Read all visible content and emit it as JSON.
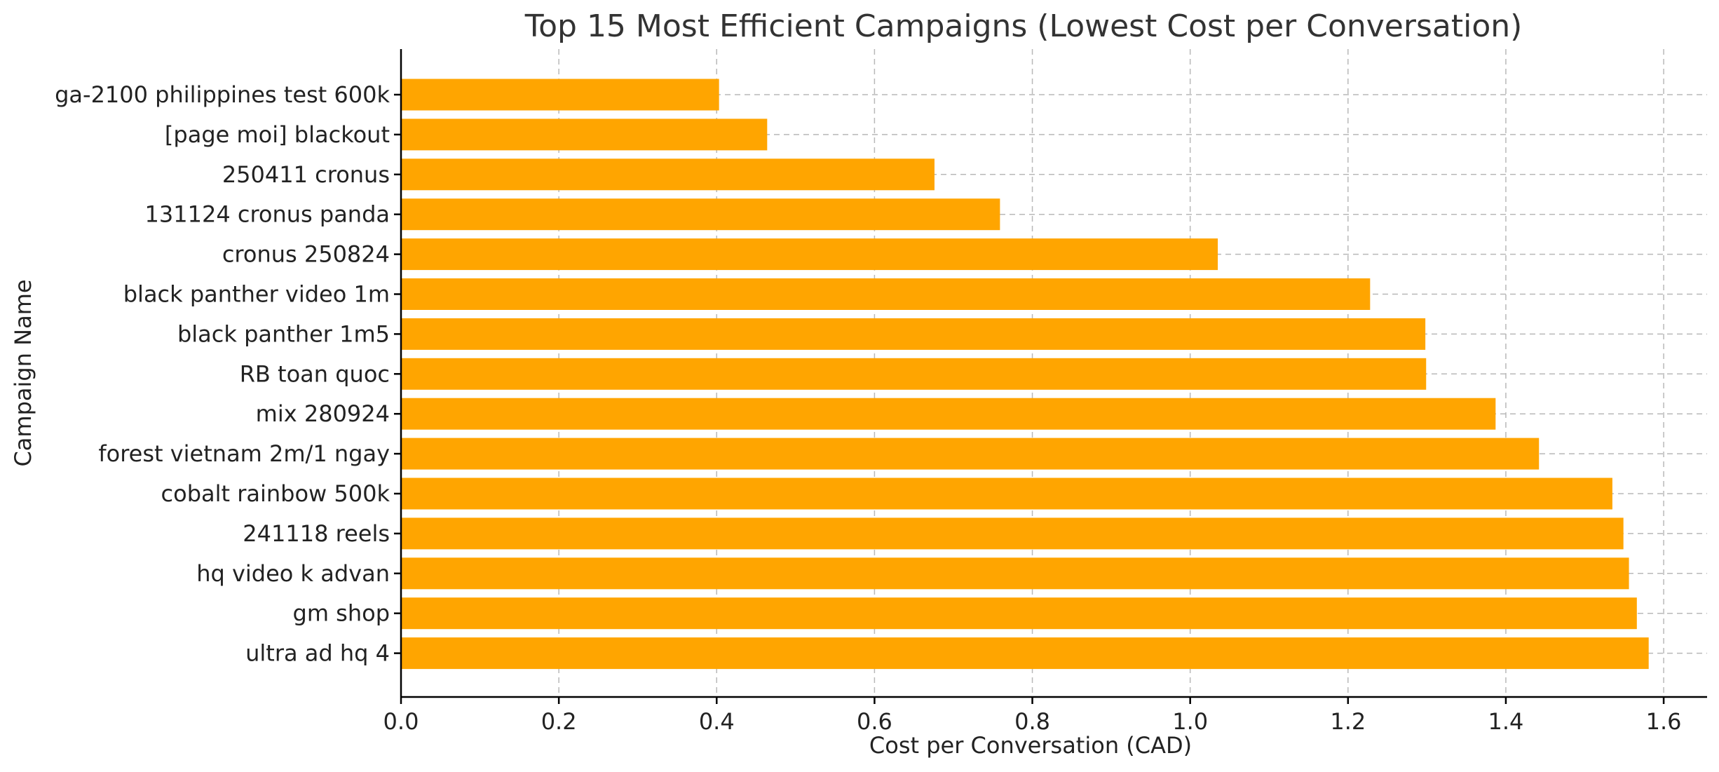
{
  "chart_data": {
    "type": "bar",
    "orientation": "horizontal",
    "title": "Top 15 Most Efficient Campaigns (Lowest Cost per Conversation)",
    "xlabel": "Cost per Conversation (CAD)",
    "ylabel": "Campaign Name",
    "xlim": [
      0,
      1.655
    ],
    "xticks": [
      "0.0",
      "0.2",
      "0.4",
      "0.6",
      "0.8",
      "1.0",
      "1.2",
      "1.4",
      "1.6"
    ],
    "grid": true,
    "bar_color": "#FFA500",
    "categories": [
      "ga-2100 philippines test 600k",
      "[page moi] blackout",
      "250411 cronus",
      "131124 cronus panda",
      "cronus 250824",
      "black panther video 1m",
      "black panther 1m5",
      "RB toan quoc",
      "mix 280924",
      "forest vietnam 2m/1 ngay",
      "cobalt rainbow 500k",
      "241118 reels",
      "hq video k advan",
      "gm shop",
      "ultra ad hq 4"
    ],
    "values": [
      0.403,
      0.464,
      0.676,
      0.759,
      1.035,
      1.228,
      1.298,
      1.299,
      1.387,
      1.442,
      1.535,
      1.549,
      1.556,
      1.566,
      1.581
    ]
  }
}
